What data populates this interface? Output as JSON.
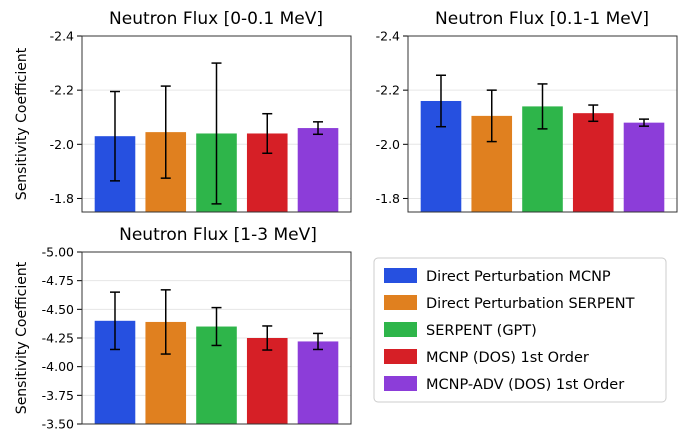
{
  "chart_data": [
    {
      "type": "bar",
      "title": "Neutron Flux [0-0.1 MeV]",
      "ylabel": "Sensitivity Coefficient",
      "ylim": [
        -1.75,
        -2.4
      ],
      "yticks": [
        "-2.4",
        "-2.2",
        "-2.0",
        "-1.8"
      ],
      "ytick_values": [
        -2.4,
        -2.2,
        -2.0,
        -1.8
      ],
      "grid": "horizontal",
      "series": [
        {
          "name": "Direct Perturbation MCNP",
          "value": -2.03,
          "err": 0.165
        },
        {
          "name": "Direct Perturbation SERPENT",
          "value": -2.045,
          "err": 0.17
        },
        {
          "name": "SERPENT (GPT)",
          "value": -2.04,
          "err": 0.26
        },
        {
          "name": "MCNP (DOS) 1st Order",
          "value": -2.04,
          "err": 0.073
        },
        {
          "name": "MCNP-ADV (DOS) 1st Order",
          "value": -2.06,
          "err": 0.023
        }
      ]
    },
    {
      "type": "bar",
      "title": "Neutron Flux [0.1-1 MeV]",
      "ylabel": "",
      "ylim": [
        -1.75,
        -2.4
      ],
      "yticks": [
        "-2.4",
        "-2.2",
        "-2.0",
        "-1.8"
      ],
      "ytick_values": [
        -2.4,
        -2.2,
        -2.0,
        -1.8
      ],
      "grid": "horizontal",
      "series": [
        {
          "name": "Direct Perturbation MCNP",
          "value": -2.16,
          "err": 0.095
        },
        {
          "name": "Direct Perturbation SERPENT",
          "value": -2.105,
          "err": 0.095
        },
        {
          "name": "SERPENT (GPT)",
          "value": -2.14,
          "err": 0.083
        },
        {
          "name": "MCNP (DOS) 1st Order",
          "value": -2.115,
          "err": 0.03
        },
        {
          "name": "MCNP-ADV (DOS) 1st Order",
          "value": -2.08,
          "err": 0.013
        }
      ]
    },
    {
      "type": "bar",
      "title": "Neutron Flux [1-3 MeV]",
      "ylabel": "Sensitivity Coefficient",
      "ylim": [
        -3.5,
        -5.0
      ],
      "yticks": [
        "-5.00",
        "-4.75",
        "-4.50",
        "-4.25",
        "-4.00",
        "-3.75",
        "-3.50"
      ],
      "ytick_values": [
        -5.0,
        -4.75,
        -4.5,
        -4.25,
        -4.0,
        -3.75,
        -3.5
      ],
      "grid": "horizontal",
      "series": [
        {
          "name": "Direct Perturbation MCNP",
          "value": -4.4,
          "err": 0.25
        },
        {
          "name": "Direct Perturbation SERPENT",
          "value": -4.39,
          "err": 0.28
        },
        {
          "name": "SERPENT (GPT)",
          "value": -4.35,
          "err": 0.165
        },
        {
          "name": "MCNP (DOS) 1st Order",
          "value": -4.25,
          "err": 0.105
        },
        {
          "name": "MCNP-ADV (DOS) 1st Order",
          "value": -4.22,
          "err": 0.07
        }
      ]
    }
  ],
  "legend": {
    "placement": "lower-right",
    "items": [
      {
        "label": "Direct Perturbation MCNP",
        "color": "#2650e0"
      },
      {
        "label": "Direct Perturbation SERPENT",
        "color": "#e0801f"
      },
      {
        "label": "SERPENT (GPT)",
        "color": "#2eb54a"
      },
      {
        "label": "MCNP (DOS) 1st Order",
        "color": "#d61f26"
      },
      {
        "label": "MCNP-ADV (DOS) 1st Order",
        "color": "#8c3dd9"
      }
    ]
  }
}
